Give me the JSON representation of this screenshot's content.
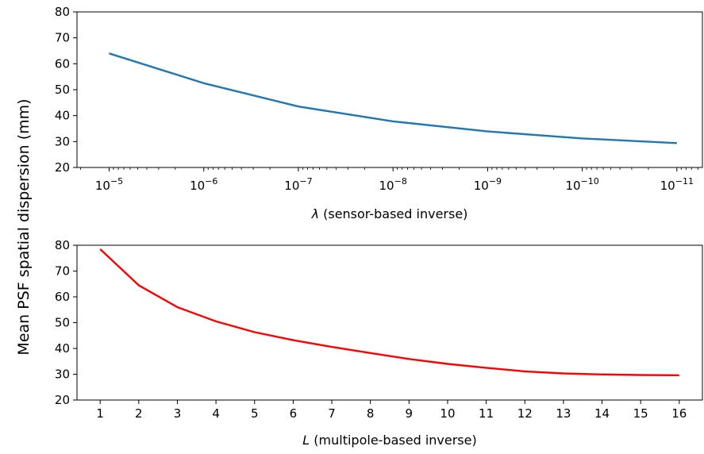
{
  "figure": {
    "shared_ylabel": "Mean PSF spatial dispersion (mm)"
  },
  "chart_data": [
    {
      "type": "line",
      "xscale": "log",
      "x_direction": "decreasing",
      "xlabel_symbol": "λ",
      "xlabel_rest": " (sensor-based inverse)",
      "x_tick_values": [
        1e-05,
        1e-06,
        1e-07,
        1e-08,
        1e-09,
        1e-10,
        1e-11
      ],
      "x_tick_labels": [
        {
          "base": "10",
          "exp": "−5"
        },
        {
          "base": "10",
          "exp": "−6"
        },
        {
          "base": "10",
          "exp": "−7"
        },
        {
          "base": "10",
          "exp": "−8"
        },
        {
          "base": "10",
          "exp": "−9"
        },
        {
          "base": "10",
          "exp": "−10"
        },
        {
          "base": "10",
          "exp": "−11"
        }
      ],
      "ylim": [
        20,
        80
      ],
      "y_ticks": [
        "20",
        "30",
        "40",
        "50",
        "60",
        "70",
        "80"
      ],
      "series": [
        {
          "color": "#1f77b4",
          "x": [
            1e-05,
            1e-06,
            1e-07,
            1e-08,
            1e-09,
            1e-10,
            1e-11
          ],
          "y": [
            64,
            52.5,
            43.5,
            37.8,
            33.9,
            31.2,
            29.4
          ]
        }
      ]
    },
    {
      "type": "line",
      "xscale": "linear",
      "xlabel_symbol": "L",
      "xlabel_rest": " (multipole-based inverse)",
      "xlim": [
        0.4,
        16.6
      ],
      "x_ticks": [
        "1",
        "2",
        "3",
        "4",
        "5",
        "6",
        "7",
        "8",
        "9",
        "10",
        "11",
        "12",
        "13",
        "14",
        "15",
        "16"
      ],
      "ylim": [
        20,
        80
      ],
      "y_ticks": [
        "20",
        "30",
        "40",
        "50",
        "60",
        "70",
        "80"
      ],
      "series": [
        {
          "color": "#ff0000",
          "x": [
            1,
            2,
            3,
            4,
            5,
            6,
            7,
            8,
            9,
            10,
            11,
            12,
            13,
            14,
            15,
            16
          ],
          "y": [
            78.5,
            64.5,
            56,
            50.5,
            46.3,
            43.2,
            40.6,
            38.2,
            35.9,
            34,
            32.5,
            31.1,
            30.3,
            29.9,
            29.7,
            29.6
          ]
        }
      ]
    }
  ]
}
